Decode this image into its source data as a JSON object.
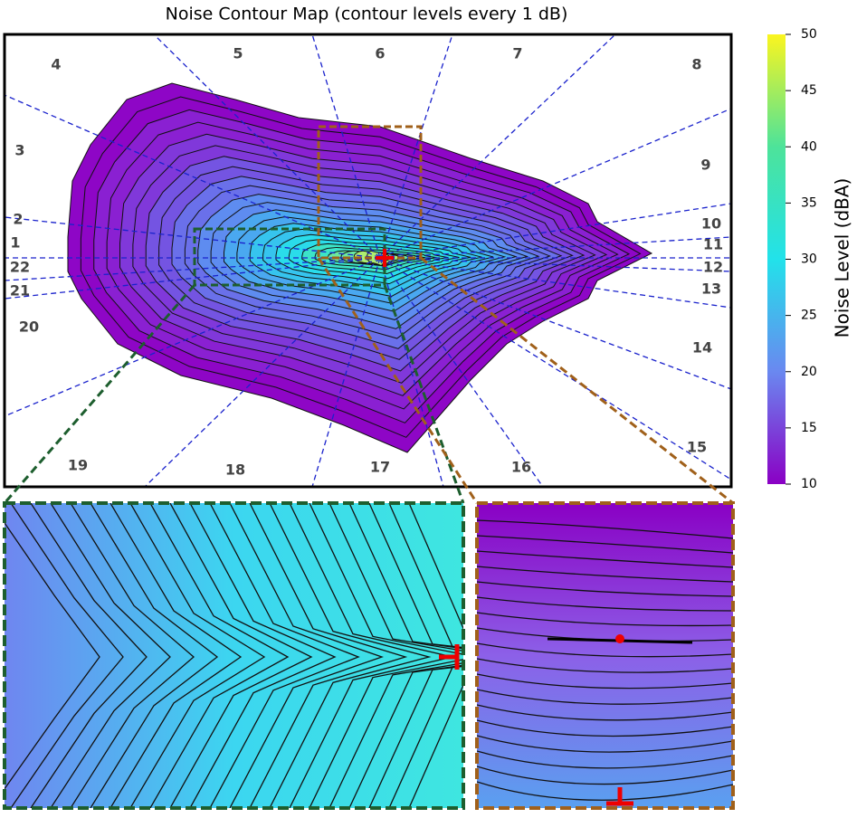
{
  "chart_data": {
    "type": "contour",
    "title": "Noise Contour Map (contour levels every 1 dB)",
    "sector_labels": [
      "1",
      "2",
      "3",
      "4",
      "5",
      "6",
      "7",
      "8",
      "9",
      "10",
      "11",
      "12",
      "13",
      "14",
      "15",
      "16",
      "17",
      "18",
      "19",
      "20",
      "21",
      "22"
    ],
    "colorbar": {
      "label": "Noise Level (dBA)",
      "lim": [
        10,
        50
      ],
      "ticks": [
        10,
        15,
        20,
        25,
        30,
        35,
        40,
        45,
        50
      ]
    }
  }
}
